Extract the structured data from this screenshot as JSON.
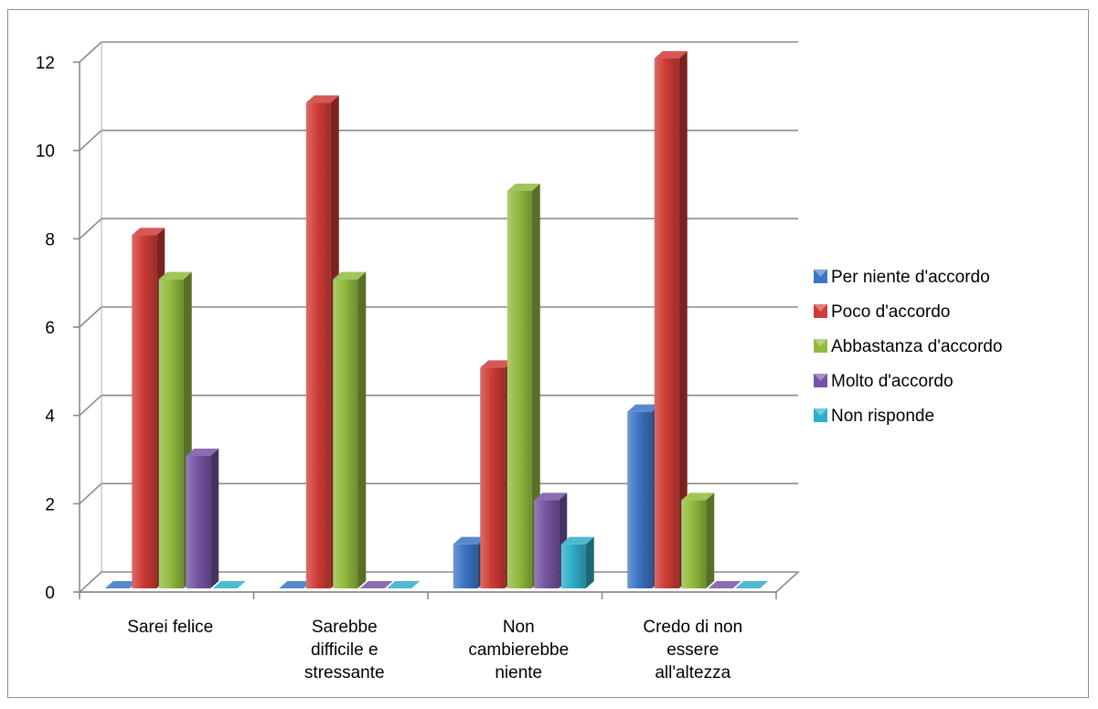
{
  "chart_data": {
    "type": "bar",
    "title": "",
    "xlabel": "",
    "ylabel": "",
    "ylim": [
      0,
      12
    ],
    "yticks": [
      "0",
      "2",
      "4",
      "6",
      "8",
      "10",
      "12"
    ],
    "grid": true,
    "legend_position": "right",
    "categories": [
      [
        "Sarei felice"
      ],
      [
        "Sarebbe",
        "difficile e",
        "stressante"
      ],
      [
        "Non",
        "cambierebbe",
        "niente"
      ],
      [
        "Credo di non",
        "essere",
        "all'altezza"
      ]
    ],
    "series": [
      {
        "name": "Per niente d'accordo",
        "color": "#3c74c4",
        "values": [
          0,
          0,
          1,
          4
        ]
      },
      {
        "name": "Poco d'accordo",
        "color": "#cf3b35",
        "values": [
          8,
          11,
          5,
          12
        ]
      },
      {
        "name": "Abbastanza d'accordo",
        "color": "#91bb3e",
        "values": [
          7,
          7,
          9,
          2
        ]
      },
      {
        "name": "Molto d'accordo",
        "color": "#7554a3",
        "values": [
          3,
          0,
          2,
          0
        ]
      },
      {
        "name": "Non risponde",
        "color": "#2eaec7",
        "values": [
          0,
          0,
          1,
          0
        ]
      }
    ]
  }
}
